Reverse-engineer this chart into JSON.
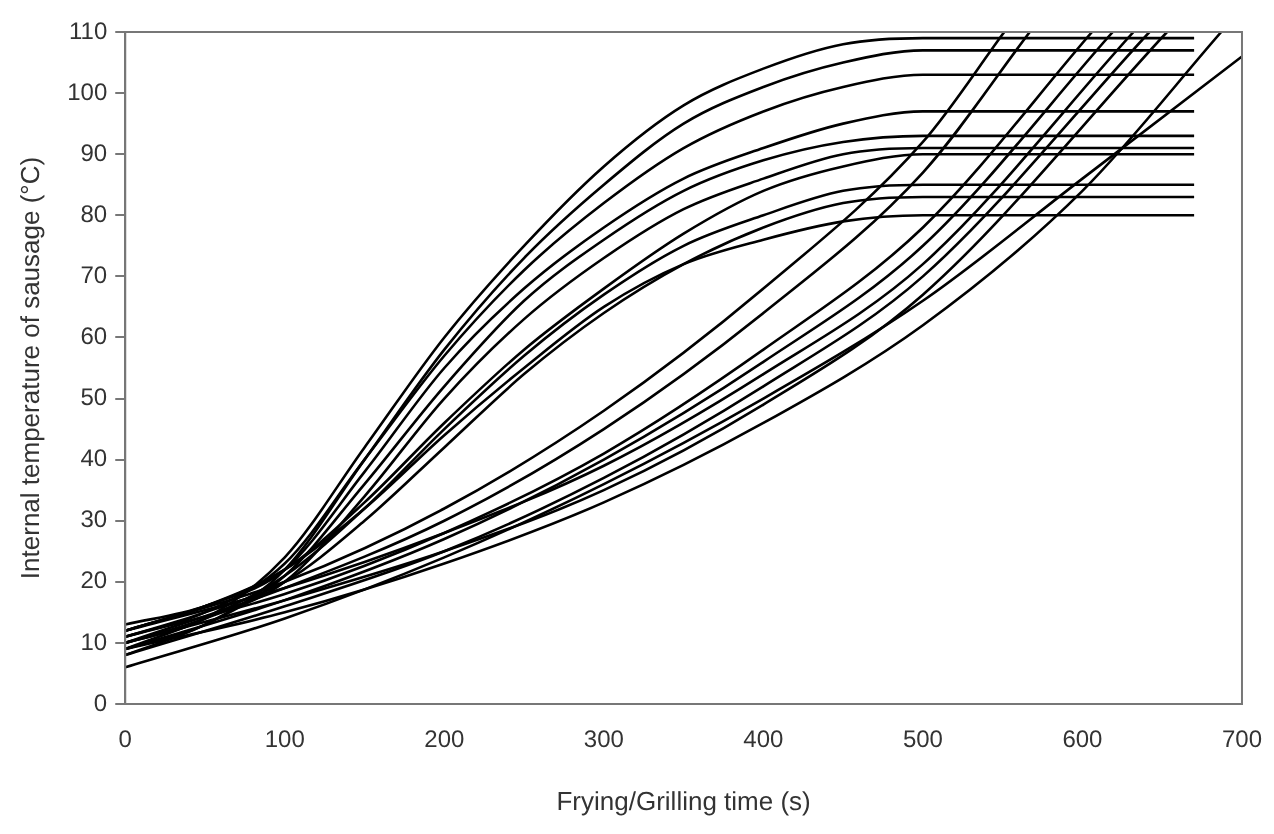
{
  "chart_data": {
    "type": "line",
    "xlabel": "Frying/Grilling time (s)",
    "ylabel": "Internal temperature of sausage (°C)",
    "xlim": [
      0,
      700
    ],
    "ylim": [
      0,
      110
    ],
    "xticks": [
      0,
      100,
      200,
      300,
      400,
      500,
      600,
      700
    ],
    "yticks": [
      0,
      10,
      20,
      30,
      40,
      50,
      60,
      70,
      80,
      90,
      100,
      110
    ],
    "grid": false,
    "legend": false,
    "marker": "none",
    "line_style": "solid",
    "series": [
      {
        "color": "#000000",
        "x": [
          0,
          50,
          100,
          150,
          200,
          250,
          300,
          350,
          400,
          450,
          500,
          670
        ],
        "values": [
          10,
          14,
          24,
          42,
          60,
          75,
          88,
          98,
          104,
          108,
          109,
          109
        ]
      },
      {
        "color": "#000000",
        "x": [
          0,
          50,
          100,
          150,
          200,
          250,
          300,
          350,
          400,
          450,
          500,
          670
        ],
        "values": [
          9,
          13,
          22,
          40,
          58,
          73,
          85,
          95,
          101,
          105,
          107,
          107
        ]
      },
      {
        "color": "#000000",
        "x": [
          0,
          50,
          100,
          150,
          200,
          250,
          300,
          350,
          400,
          450,
          500,
          670
        ],
        "values": [
          11,
          15,
          23,
          40,
          57,
          71,
          82,
          91,
          97,
          101,
          103,
          103
        ]
      },
      {
        "color": "#000000",
        "x": [
          0,
          50,
          100,
          150,
          200,
          250,
          300,
          350,
          400,
          450,
          500,
          670
        ],
        "values": [
          12,
          16,
          22,
          38,
          55,
          68,
          78,
          86,
          91,
          95,
          97,
          97
        ]
      },
      {
        "color": "#000000",
        "x": [
          0,
          50,
          100,
          150,
          200,
          250,
          300,
          350,
          400,
          450,
          500,
          670
        ],
        "values": [
          8,
          13,
          21,
          36,
          52,
          66,
          76,
          84,
          89,
          92,
          93,
          93
        ]
      },
      {
        "color": "#000000",
        "x": [
          0,
          50,
          100,
          150,
          200,
          250,
          300,
          350,
          400,
          450,
          500,
          670
        ],
        "values": [
          10,
          14,
          20,
          34,
          50,
          63,
          73,
          81,
          86,
          90,
          91,
          91
        ]
      },
      {
        "color": "#000000",
        "x": [
          0,
          50,
          100,
          150,
          200,
          250,
          300,
          350,
          400,
          450,
          500,
          670
        ],
        "values": [
          13,
          16,
          22,
          33,
          46,
          58,
          68,
          77,
          84,
          88,
          90,
          90
        ]
      },
      {
        "color": "#000000",
        "x": [
          0,
          50,
          100,
          150,
          200,
          250,
          300,
          350,
          400,
          450,
          500,
          670
        ],
        "values": [
          9,
          14,
          21,
          32,
          45,
          57,
          67,
          75,
          80,
          84,
          85,
          85
        ]
      },
      {
        "color": "#000000",
        "x": [
          0,
          50,
          100,
          150,
          200,
          250,
          300,
          350,
          400,
          450,
          500,
          670
        ],
        "values": [
          11,
          15,
          20,
          30,
          42,
          54,
          64,
          72,
          78,
          82,
          83,
          83
        ]
      },
      {
        "color": "#000000",
        "x": [
          0,
          50,
          100,
          150,
          200,
          250,
          300,
          350,
          400,
          450,
          500,
          670
        ],
        "values": [
          12,
          16,
          22,
          32,
          44,
          55,
          65,
          72,
          76,
          79,
          80,
          80
        ]
      },
      {
        "color": "#000000",
        "x": [
          0,
          100,
          200,
          300,
          400,
          500,
          551
        ],
        "values": [
          12,
          20,
          32,
          48,
          68,
          92,
          110
        ]
      },
      {
        "color": "#000000",
        "x": [
          0,
          100,
          200,
          300,
          400,
          500,
          567
        ],
        "values": [
          10,
          19,
          30,
          45,
          64,
          87,
          110
        ]
      },
      {
        "color": "#000000",
        "x": [
          0,
          100,
          200,
          300,
          400,
          500,
          606
        ],
        "values": [
          11,
          18,
          28,
          41,
          58,
          78,
          110
        ]
      },
      {
        "color": "#000000",
        "x": [
          0,
          100,
          200,
          300,
          400,
          500,
          619
        ],
        "values": [
          9,
          17,
          27,
          40,
          56,
          75,
          110
        ]
      },
      {
        "color": "#000000",
        "x": [
          0,
          100,
          200,
          300,
          400,
          500,
          632
        ],
        "values": [
          12,
          19,
          28,
          39,
          54,
          72,
          110
        ]
      },
      {
        "color": "#000000",
        "x": [
          0,
          100,
          200,
          300,
          400,
          500,
          642
        ],
        "values": [
          8,
          16,
          25,
          37,
          52,
          70,
          110
        ]
      },
      {
        "color": "#000000",
        "x": [
          0,
          100,
          200,
          300,
          400,
          500,
          653
        ],
        "values": [
          10,
          17,
          25,
          35,
          49,
          67,
          110
        ]
      },
      {
        "color": "#000000",
        "x": [
          0,
          100,
          200,
          300,
          400,
          500,
          600,
          687
        ],
        "values": [
          9,
          15,
          23,
          33,
          46,
          62,
          84,
          110
        ]
      },
      {
        "color": "#000000",
        "x": [
          0,
          100,
          200,
          300,
          400,
          500,
          600,
          700
        ],
        "values": [
          6,
          14,
          24,
          36,
          50,
          66,
          86,
          106
        ]
      }
    ]
  }
}
